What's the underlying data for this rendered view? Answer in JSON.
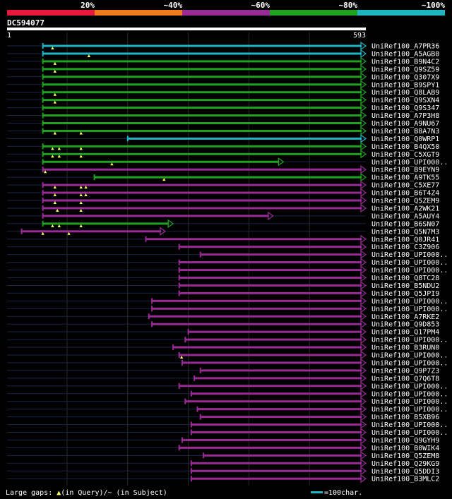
{
  "legend": {
    "bins": [
      {
        "label": "20%",
        "color": "#e8173c"
      },
      {
        "label": "~40%",
        "color": "#f07a1e"
      },
      {
        "label": "~60%",
        "color": "#9a2a95"
      },
      {
        "label": "~80%",
        "color": "#1fa31e"
      },
      {
        "label": "~100%",
        "color": "#1fb6c2"
      }
    ]
  },
  "query": {
    "id": "DC594077",
    "start": "1",
    "end": "593",
    "length": 593
  },
  "footer": {
    "gaps_label": "Large gaps: ",
    "query_marker": "▲",
    "query_label": "(in Query)",
    "subject_label": "/~ (in Subject)",
    "scale_label": "=100char."
  },
  "chart_data": {
    "type": "alignment",
    "x_unit": "query position (aa)",
    "xlim": [
      1,
      593
    ],
    "hits": [
      {
        "name": "UniRef100_A7PR36",
        "start": 60,
        "end": 593,
        "cls": "100",
        "gaps": [
          76
        ]
      },
      {
        "name": "UniRef100_A5AGB0",
        "start": 60,
        "end": 593,
        "cls": "100",
        "gaps": [
          136
        ]
      },
      {
        "name": "UniRef100_B9N4C2",
        "start": 60,
        "end": 593,
        "cls": "80",
        "gaps": [
          80
        ]
      },
      {
        "name": "UniRef100_Q9SZ59",
        "start": 60,
        "end": 593,
        "cls": "80",
        "gaps": [
          80
        ]
      },
      {
        "name": "UniRef100_Q307X9",
        "start": 60,
        "end": 593,
        "cls": "80",
        "gaps": []
      },
      {
        "name": "UniRef100_B9SPY1",
        "start": 60,
        "end": 593,
        "cls": "80",
        "gaps": []
      },
      {
        "name": "UniRef100_Q8LAB9",
        "start": 60,
        "end": 593,
        "cls": "80",
        "gaps": [
          80
        ]
      },
      {
        "name": "UniRef100_Q9SXN4",
        "start": 60,
        "end": 593,
        "cls": "80",
        "gaps": [
          80
        ]
      },
      {
        "name": "UniRef100_Q9S347",
        "start": 60,
        "end": 593,
        "cls": "80",
        "gaps": []
      },
      {
        "name": "UniRef100_A7P3H8",
        "start": 60,
        "end": 593,
        "cls": "80",
        "gaps": []
      },
      {
        "name": "UniRef100_A9NU67",
        "start": 60,
        "end": 593,
        "cls": "80",
        "gaps": []
      },
      {
        "name": "UniRef100_B8A7N3",
        "start": 60,
        "end": 593,
        "cls": "80",
        "gaps": [
          80,
          123
        ]
      },
      {
        "name": "UniRef100_Q0WRP1",
        "start": 200,
        "end": 593,
        "cls": "100",
        "gaps": []
      },
      {
        "name": "UniRef100_B4QX50",
        "start": 60,
        "end": 593,
        "cls": "80",
        "gaps": [
          76,
          87,
          123
        ]
      },
      {
        "name": "UniRef100_C5XGT9",
        "start": 60,
        "end": 593,
        "cls": "80",
        "gaps": [
          76,
          87,
          123
        ]
      },
      {
        "name": "UniRef100_UPI000..",
        "start": 60,
        "end": 457,
        "cls": "80",
        "gaps": [
          174
        ]
      },
      {
        "name": "UniRef100_B9EYN9",
        "start": 60,
        "end": 593,
        "cls": "60",
        "gaps": [
          64
        ]
      },
      {
        "name": "UniRef100_A9TK55",
        "start": 145,
        "end": 593,
        "cls": "80",
        "gaps": [
          260
        ]
      },
      {
        "name": "UniRef100_C5XE77",
        "start": 60,
        "end": 593,
        "cls": "60",
        "gaps": [
          80,
          123,
          131
        ]
      },
      {
        "name": "UniRef100_B6T4Z4",
        "start": 60,
        "end": 593,
        "cls": "60",
        "gaps": [
          80,
          123,
          131
        ]
      },
      {
        "name": "UniRef100_Q5ZEM9",
        "start": 60,
        "end": 593,
        "cls": "60",
        "gaps": [
          80,
          123
        ]
      },
      {
        "name": "UniRef100_A2WK21",
        "start": 60,
        "end": 593,
        "cls": "60",
        "gaps": [
          84,
          123
        ]
      },
      {
        "name": "UniRef100_A5AUY4",
        "start": 60,
        "end": 440,
        "cls": "60",
        "gaps": []
      },
      {
        "name": "UniRef100_B6SN07",
        "start": 60,
        "end": 275,
        "cls": "80",
        "gaps": [
          76,
          87,
          123
        ]
      },
      {
        "name": "UniRef100_Q5N7M3",
        "start": 25,
        "end": 262,
        "cls": "60",
        "gaps": [
          60,
          103
        ]
      },
      {
        "name": "UniRef100_Q0JR41",
        "start": 230,
        "end": 593,
        "cls": "60",
        "gaps": []
      },
      {
        "name": "UniRef100_C3Z906",
        "start": 285,
        "end": 593,
        "cls": "60",
        "gaps": []
      },
      {
        "name": "UniRef100_UPI000..",
        "start": 320,
        "end": 593,
        "cls": "60",
        "gaps": []
      },
      {
        "name": "UniRef100_UPI000..",
        "start": 285,
        "end": 593,
        "cls": "60",
        "gaps": []
      },
      {
        "name": "UniRef100_UPI000..",
        "start": 285,
        "end": 593,
        "cls": "60",
        "gaps": []
      },
      {
        "name": "UniRef100_Q8TC28",
        "start": 285,
        "end": 593,
        "cls": "60",
        "gaps": []
      },
      {
        "name": "UniRef100_B5NDU2",
        "start": 285,
        "end": 593,
        "cls": "60",
        "gaps": []
      },
      {
        "name": "UniRef100_Q5JPI9",
        "start": 285,
        "end": 593,
        "cls": "60",
        "gaps": []
      },
      {
        "name": "UniRef100_UPI000..",
        "start": 240,
        "end": 593,
        "cls": "60",
        "gaps": []
      },
      {
        "name": "UniRef100_UPI000..",
        "start": 240,
        "end": 593,
        "cls": "60",
        "gaps": []
      },
      {
        "name": "UniRef100_A7RKE2",
        "start": 235,
        "end": 593,
        "cls": "60",
        "gaps": []
      },
      {
        "name": "UniRef100_Q9D853",
        "start": 240,
        "end": 593,
        "cls": "60",
        "gaps": []
      },
      {
        "name": "UniRef100_Q17PM4",
        "start": 300,
        "end": 593,
        "cls": "60",
        "gaps": []
      },
      {
        "name": "UniRef100_UPI000..",
        "start": 295,
        "end": 593,
        "cls": "60",
        "gaps": []
      },
      {
        "name": "UniRef100_B3RUN0",
        "start": 275,
        "end": 593,
        "cls": "60",
        "gaps": []
      },
      {
        "name": "UniRef100_UPI000..",
        "start": 285,
        "end": 593,
        "cls": "60",
        "gaps": [
          289
        ]
      },
      {
        "name": "UniRef100_UPI000..",
        "start": 290,
        "end": 593,
        "cls": "60",
        "gaps": []
      },
      {
        "name": "UniRef100_Q9P7Z3",
        "start": 320,
        "end": 593,
        "cls": "60",
        "gaps": []
      },
      {
        "name": "UniRef100_Q7Q6T8",
        "start": 310,
        "end": 593,
        "cls": "60",
        "gaps": []
      },
      {
        "name": "UniRef100_UPI000..",
        "start": 285,
        "end": 593,
        "cls": "60",
        "gaps": []
      },
      {
        "name": "UniRef100_UPI000..",
        "start": 305,
        "end": 593,
        "cls": "60",
        "gaps": []
      },
      {
        "name": "UniRef100_UPI000..",
        "start": 295,
        "end": 593,
        "cls": "60",
        "gaps": []
      },
      {
        "name": "UniRef100_UPI000..",
        "start": 315,
        "end": 593,
        "cls": "60",
        "gaps": []
      },
      {
        "name": "UniRef100_B5XB96",
        "start": 320,
        "end": 593,
        "cls": "60",
        "gaps": []
      },
      {
        "name": "UniRef100_UPI000..",
        "start": 305,
        "end": 593,
        "cls": "60",
        "gaps": []
      },
      {
        "name": "UniRef100_UPI000..",
        "start": 305,
        "end": 593,
        "cls": "60",
        "gaps": []
      },
      {
        "name": "UniRef100_Q9GYH9",
        "start": 290,
        "end": 593,
        "cls": "60",
        "gaps": []
      },
      {
        "name": "UniRef100_B0WIK4",
        "start": 285,
        "end": 593,
        "cls": "60",
        "gaps": []
      },
      {
        "name": "UniRef100_Q5ZEM8",
        "start": 325,
        "end": 593,
        "cls": "60",
        "gaps": []
      },
      {
        "name": "UniRef100_Q29KG9",
        "start": 305,
        "end": 593,
        "cls": "60",
        "gaps": []
      },
      {
        "name": "UniRef100_Q5DDI3",
        "start": 305,
        "end": 593,
        "cls": "60",
        "gaps": []
      },
      {
        "name": "UniRef100_B3MLC2",
        "start": 305,
        "end": 593,
        "cls": "60",
        "gaps": []
      }
    ]
  }
}
